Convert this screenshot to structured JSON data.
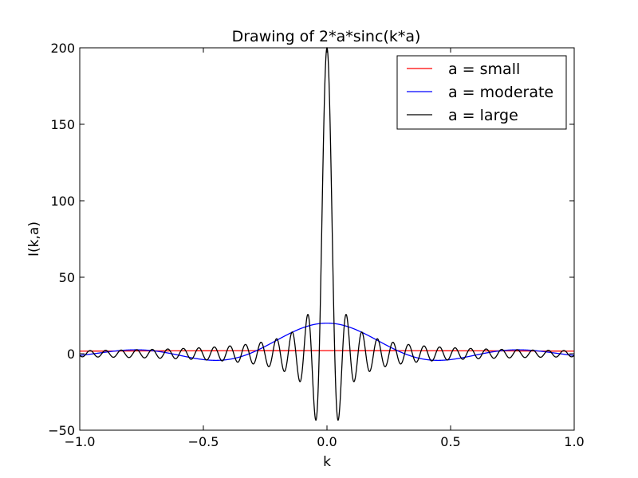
{
  "chart_data": {
    "type": "line",
    "title": "Drawing of 2*a*sinc(k*a)",
    "xlabel": "k",
    "ylabel": "I(k,a)",
    "xlim": [
      -1.0,
      1.0
    ],
    "ylim": [
      -50,
      200
    ],
    "x_ticks": [
      -1.0,
      -0.5,
      0.0,
      0.5,
      1.0
    ],
    "x_tick_labels": [
      "−1.0",
      "−0.5",
      "0.0",
      "0.5",
      "1.0"
    ],
    "y_ticks": [
      -50,
      0,
      50,
      100,
      150,
      200
    ],
    "y_tick_labels": [
      "−50",
      "0",
      "50",
      "100",
      "150",
      "200"
    ],
    "grid": false,
    "legend_position": "top-right",
    "series": [
      {
        "name": "a = small",
        "color": "#ff0000",
        "a": 1
      },
      {
        "name": "a = moderate",
        "color": "#0000ff",
        "a": 10
      },
      {
        "name": "a = large",
        "color": "#000000",
        "a": 100
      }
    ]
  }
}
